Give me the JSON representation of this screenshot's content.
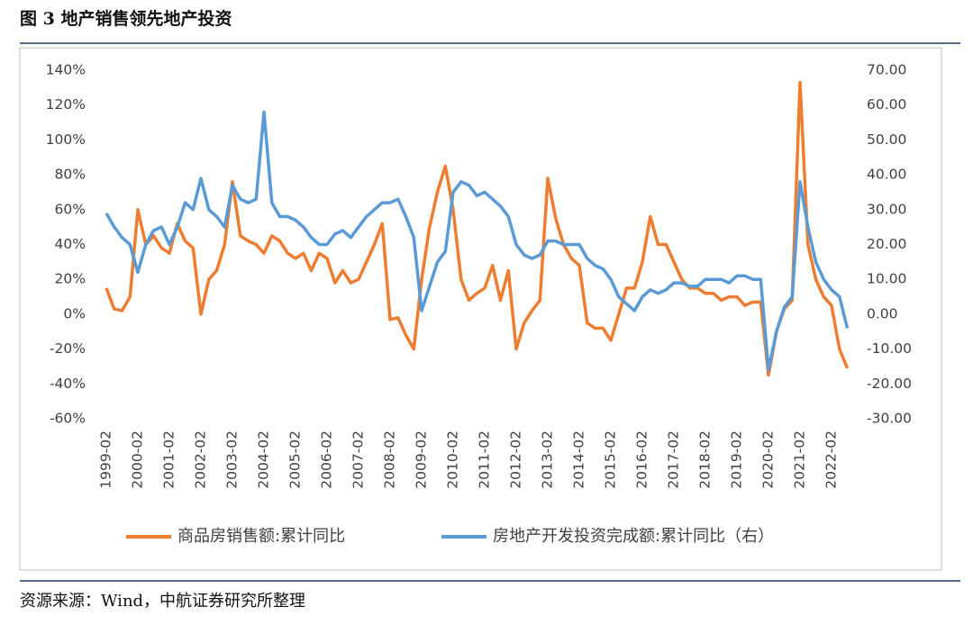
{
  "header": {
    "title": "图 3  地产销售领先地产投资"
  },
  "source": "资源来源：Wind，中航证券研究所整理",
  "chart_data": {
    "type": "line",
    "categories": [
      "1999-02",
      null,
      null,
      null,
      "2000-02",
      null,
      null,
      null,
      "2001-02",
      null,
      null,
      null,
      "2002-02",
      null,
      null,
      null,
      "2003-02",
      null,
      null,
      null,
      "2004-02",
      null,
      null,
      null,
      "2005-02",
      null,
      null,
      null,
      "2006-02",
      null,
      null,
      null,
      "2007-02",
      null,
      null,
      null,
      "2008-02",
      null,
      null,
      null,
      "2009-02",
      null,
      null,
      null,
      "2010-02",
      null,
      null,
      null,
      "2011-02",
      null,
      null,
      null,
      "2012-02",
      null,
      null,
      null,
      "2013-02",
      null,
      null,
      null,
      "2014-02",
      null,
      null,
      null,
      "2015-02",
      null,
      null,
      null,
      "2016-02",
      null,
      null,
      null,
      "2017-02",
      null,
      null,
      null,
      "2018-02",
      null,
      null,
      null,
      "2019-02",
      null,
      null,
      null,
      "2020-02",
      null,
      null,
      null,
      "2021-02",
      null,
      null,
      null,
      "2022-02",
      null,
      null
    ],
    "series": [
      {
        "name": "商品房销售额:累计同比",
        "color": "#ed7d31",
        "values": [
          15,
          3,
          2,
          10,
          60,
          40,
          45,
          38,
          35,
          52,
          42,
          38,
          0,
          20,
          25,
          40,
          76,
          45,
          42,
          40,
          35,
          45,
          42,
          35,
          32,
          35,
          25,
          35,
          32,
          18,
          25,
          18,
          20,
          30,
          40,
          52,
          -3,
          -2,
          -12,
          -20,
          20,
          50,
          70,
          85,
          60,
          20,
          8,
          12,
          15,
          28,
          8,
          25,
          -20,
          -5,
          2,
          8,
          78,
          55,
          40,
          32,
          28,
          -5,
          -8,
          -8,
          -15,
          0,
          15,
          15,
          30,
          56,
          40,
          40,
          30,
          20,
          15,
          15,
          12,
          12,
          8,
          10,
          10,
          5,
          7,
          7,
          -35,
          -10,
          3,
          8,
          133,
          40,
          20,
          10,
          5,
          -20,
          -31
        ]
      },
      {
        "name": "房地产开发投资完成额:累计同比（右）",
        "color": "#5b9bd5",
        "axis": "y2",
        "values": [
          29,
          25,
          22,
          20,
          12,
          20,
          24,
          25,
          20,
          25,
          32,
          30,
          39,
          30,
          28,
          25,
          37,
          33,
          32,
          33,
          58,
          32,
          28,
          28,
          27,
          25,
          22,
          20,
          20,
          23,
          24,
          22,
          25,
          28,
          30,
          32,
          32,
          33,
          28,
          22,
          1,
          8,
          15,
          18,
          35,
          38,
          37,
          34,
          35,
          33,
          31,
          28,
          20,
          17,
          16,
          17,
          21,
          21,
          20,
          20,
          20,
          16,
          14,
          13,
          10,
          5,
          3,
          1,
          5,
          7,
          6,
          7,
          9,
          9,
          8,
          8,
          10,
          10,
          10,
          9,
          11,
          11,
          10,
          10,
          -16,
          -5,
          2,
          5,
          38,
          25,
          15,
          10,
          7,
          5,
          -4
        ]
      }
    ],
    "ylim": [
      -60,
      140
    ],
    "yticks": [
      {
        "value": -60,
        "label": "-60%"
      },
      {
        "value": -40,
        "label": "-40%"
      },
      {
        "value": -20,
        "label": "-20%"
      },
      {
        "value": 0,
        "label": "0%"
      },
      {
        "value": 20,
        "label": "20%"
      },
      {
        "value": 40,
        "label": "40%"
      },
      {
        "value": 60,
        "label": "60%"
      },
      {
        "value": 80,
        "label": "80%"
      },
      {
        "value": 100,
        "label": "100%"
      },
      {
        "value": 120,
        "label": "120%"
      },
      {
        "value": 140,
        "label": "140%"
      }
    ],
    "y2lim": [
      -30,
      70
    ],
    "y2ticks": [
      {
        "value": -30,
        "label": "-30.00"
      },
      {
        "value": -20,
        "label": "-20.00"
      },
      {
        "value": -10,
        "label": "-10.00"
      },
      {
        "value": 0,
        "label": "0.00"
      },
      {
        "value": 10,
        "label": "10.00"
      },
      {
        "value": 20,
        "label": "20.00"
      },
      {
        "value": 30,
        "label": "30.00"
      },
      {
        "value": 40,
        "label": "40.00"
      },
      {
        "value": 50,
        "label": "50.00"
      },
      {
        "value": 60,
        "label": "60.00"
      },
      {
        "value": 70,
        "label": "70.00"
      }
    ],
    "legend": "bottom"
  }
}
